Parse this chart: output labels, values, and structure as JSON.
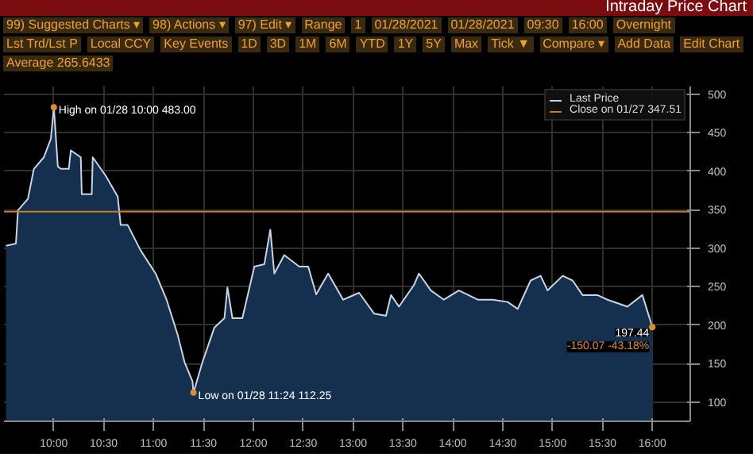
{
  "chart_data": {
    "type": "area",
    "title": "Intraday Price Chart",
    "annotations": [
      "99) Suggested Charts ▾",
      "98) Actions ▾",
      "97) Edit ▾",
      "Range",
      "1",
      "01/28/2021",
      "01/28/2021",
      "09:30",
      "16:00",
      "Overnight",
      "Lst Trd/Lst P",
      "Local CCY",
      "Key Events",
      "1D",
      "3D",
      "1M",
      "6M",
      "YTD",
      "1Y",
      "5Y",
      "Max",
      "Tick ▼",
      "Compare ▾",
      "Add Data",
      "Edit Chart",
      "Average 265.6433",
      {
        "text": "High on 01/28 10:00 483.00",
        "x": 10.0,
        "y": 483
      },
      {
        "text": "Low on 01/28 11:24 112.25",
        "x": 11.4,
        "y": 112.25
      },
      {
        "text": "197.44",
        "x": 16.0,
        "y": 197.44
      },
      {
        "text": "-150.07 -43.18%",
        "x": 16.0,
        "y": 197.44
      }
    ],
    "series": [
      {
        "name": "Last Price",
        "color": "#c8d4e2",
        "x": [
          9.52,
          9.62,
          9.64,
          9.74,
          9.8,
          9.9,
          9.97,
          10.0,
          10.04,
          10.07,
          10.15,
          10.17,
          10.27,
          10.28,
          10.38,
          10.39,
          10.52,
          10.64,
          10.67,
          10.74,
          10.87,
          11.02,
          11.13,
          11.24,
          11.31,
          11.39,
          11.4,
          11.49,
          11.61,
          11.71,
          11.74,
          11.79,
          11.89,
          12.01,
          12.11,
          12.17,
          12.21,
          12.31,
          12.46,
          12.55,
          12.63,
          12.75,
          12.9,
          13.06,
          13.21,
          13.33,
          13.38,
          13.46,
          13.61,
          13.66,
          13.78,
          13.91,
          14.06,
          14.25,
          14.4,
          14.55,
          14.65,
          14.78,
          14.88,
          14.95,
          15.1,
          15.2,
          15.3,
          15.45,
          15.55,
          15.75,
          15.9,
          16.0
        ],
        "values": [
          303,
          306,
          349,
          364,
          403,
          418,
          442,
          483,
          406,
          403,
          403,
          427,
          418,
          370,
          370,
          418,
          394,
          367,
          330,
          330,
          297,
          267,
          233,
          188,
          152,
          127,
          112.25,
          152,
          197,
          209,
          249,
          209,
          209,
          276,
          279,
          324,
          267,
          291,
          276,
          276,
          240,
          267,
          233,
          242,
          215,
          212,
          239,
          224,
          252,
          267,
          245,
          233,
          245,
          233,
          233,
          230,
          221,
          258,
          264,
          245,
          264,
          258,
          239,
          239,
          233,
          224,
          239,
          197.44
        ]
      }
    ],
    "ref_lines": [
      {
        "axis": "y",
        "value": 347.51,
        "label": "Close on 01/27 347.51",
        "color": "#c87a28"
      }
    ],
    "xlim": [
      9.5,
      16.38
    ],
    "ylim": [
      75,
      510
    ],
    "xticks": [
      {
        "value": 10,
        "label": "10:00"
      },
      {
        "value": 10.5,
        "label": "10:30"
      },
      {
        "value": 11,
        "label": "11:00"
      },
      {
        "value": 11.5,
        "label": "11:30"
      },
      {
        "value": 12,
        "label": "12:00"
      },
      {
        "value": 12.5,
        "label": "12:30"
      },
      {
        "value": 13,
        "label": "13:00"
      },
      {
        "value": 13.5,
        "label": "13:30"
      },
      {
        "value": 14,
        "label": "14:00"
      },
      {
        "value": 14.5,
        "label": "14:30"
      },
      {
        "value": 15,
        "label": "15:00"
      },
      {
        "value": 15.5,
        "label": "15:30"
      },
      {
        "value": 16,
        "label": "16:00"
      }
    ],
    "yticks": [
      100,
      150,
      200,
      250,
      300,
      350,
      400,
      450,
      500
    ],
    "grid": true,
    "legend": "top right"
  }
}
